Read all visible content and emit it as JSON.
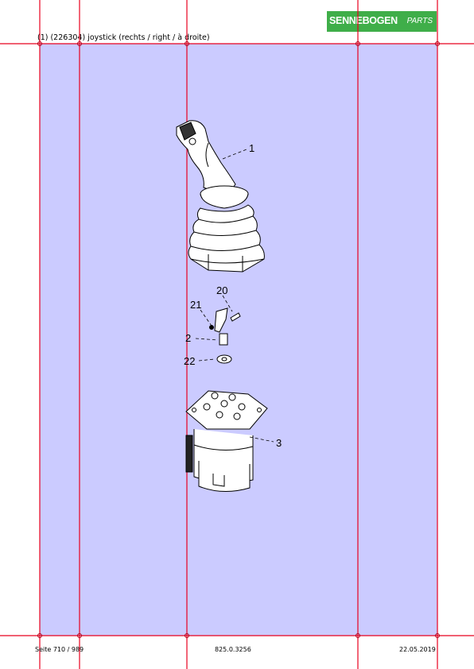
{
  "header": {
    "brand": "SENNEBOGEN",
    "brand_suffix": "PARTS",
    "title": "(1) (226304) joystick (rechts / right / à droite)"
  },
  "drawing": {
    "callouts": [
      "1",
      "20",
      "21",
      "2",
      "22",
      "3"
    ]
  },
  "footer": {
    "page": "Seite 710 / 989",
    "doc_number": "825.0.3256",
    "date": "22.05.2019"
  },
  "colors": {
    "shade": "#cbcbff",
    "grid_line": "#e8001e",
    "logo_green": "#3fae49"
  }
}
